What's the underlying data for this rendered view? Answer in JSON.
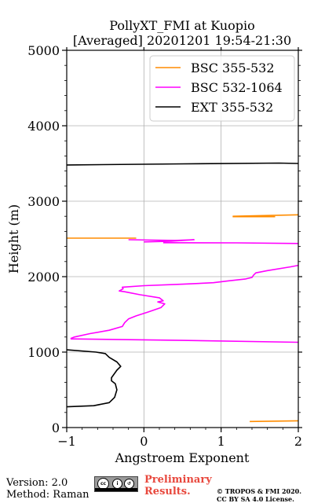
{
  "chart_data": {
    "type": "line",
    "title": [
      "PollyXT_FMI at Kuopio",
      "[Averaged] 20201201 19:54-21:30"
    ],
    "xlabel": "Angstroem Exponent",
    "ylabel": "Height (m)",
    "xlim": [
      -1,
      2
    ],
    "ylim": [
      0,
      5000
    ],
    "xticks": [
      -1,
      0,
      1,
      2
    ],
    "xtick_labels": [
      "−1",
      "0",
      "1",
      "2"
    ],
    "yticks": [
      0,
      1000,
      2000,
      3000,
      4000,
      5000
    ],
    "ytick_labels": [
      "0",
      "1000",
      "2000",
      "3000",
      "4000",
      "5000"
    ],
    "grid": true,
    "legend_position": "top-right",
    "series": [
      {
        "name": "BSC 355-532",
        "color": "#ff8c00",
        "segments": [
          [
            [
              1.37,
              80
            ],
            [
              2.0,
              90
            ]
          ],
          [
            [
              -1.0,
              2510
            ],
            [
              -0.1,
              2510
            ]
          ],
          [
            [
              1.15,
              2795
            ],
            [
              1.7,
              2795
            ]
          ],
          [
            [
              1.15,
              2800
            ],
            [
              2.0,
              2820
            ]
          ]
        ]
      },
      {
        "name": "BSC 532-1064",
        "color": "#ff00ff",
        "segments": [
          [
            [
              -0.2,
              2490
            ],
            [
              0.4,
              2480
            ],
            [
              0.65,
              2490
            ],
            [
              0.35,
              2470
            ],
            [
              0.0,
              2460
            ]
          ],
          [
            [
              0.25,
              2450
            ],
            [
              1.2,
              2448
            ],
            [
              2.0,
              2440
            ]
          ],
          [
            [
              2.0,
              2150
            ],
            [
              1.9,
              2130
            ],
            [
              1.6,
              2080
            ],
            [
              1.45,
              2050
            ],
            [
              1.42,
              2020
            ],
            [
              1.4,
              1990
            ],
            [
              1.32,
              1970
            ],
            [
              1.1,
              1945
            ],
            [
              0.9,
              1920
            ],
            [
              0.5,
              1900
            ],
            [
              0.0,
              1880
            ],
            [
              -0.28,
              1860
            ],
            [
              -0.27,
              1840
            ],
            [
              -0.32,
              1810
            ],
            [
              -0.25,
              1800
            ],
            [
              -0.05,
              1760
            ],
            [
              0.2,
              1720
            ],
            [
              0.25,
              1680
            ],
            [
              0.18,
              1665
            ],
            [
              0.27,
              1640
            ],
            [
              0.22,
              1590
            ],
            [
              0.05,
              1530
            ],
            [
              -0.1,
              1480
            ],
            [
              -0.2,
              1440
            ],
            [
              -0.25,
              1390
            ],
            [
              -0.28,
              1340
            ],
            [
              -0.45,
              1290
            ],
            [
              -0.7,
              1245
            ],
            [
              -0.9,
              1200
            ],
            [
              -0.95,
              1180
            ]
          ],
          [
            [
              -0.95,
              1175
            ],
            [
              0.5,
              1155
            ],
            [
              2.0,
              1130
            ]
          ]
        ]
      },
      {
        "name": "EXT 355-532",
        "color": "#000000",
        "segments": [
          [
            [
              -1.0,
              3480
            ],
            [
              0.5,
              3495
            ],
            [
              1.75,
              3505
            ],
            [
              2.0,
              3500
            ]
          ],
          [
            [
              -1.0,
              1030
            ],
            [
              -0.62,
              1000
            ],
            [
              -0.5,
              980
            ],
            [
              -0.45,
              930
            ],
            [
              -0.35,
              870
            ],
            [
              -0.3,
              810
            ],
            [
              -0.35,
              760
            ],
            [
              -0.42,
              660
            ],
            [
              -0.42,
              620
            ],
            [
              -0.37,
              580
            ],
            [
              -0.35,
              500
            ],
            [
              -0.38,
              400
            ],
            [
              -0.45,
              330
            ],
            [
              -0.65,
              290
            ],
            [
              -1.0,
              275
            ]
          ]
        ]
      }
    ]
  },
  "footer": {
    "version": "Version: 2.0",
    "method": "Method: Raman",
    "preliminary_line1": "Preliminary",
    "preliminary_line2": "Results.",
    "copyright_line1": "© TROPOS & FMI 2020.",
    "copyright_line2": "CC BY SA 4.0 License."
  }
}
